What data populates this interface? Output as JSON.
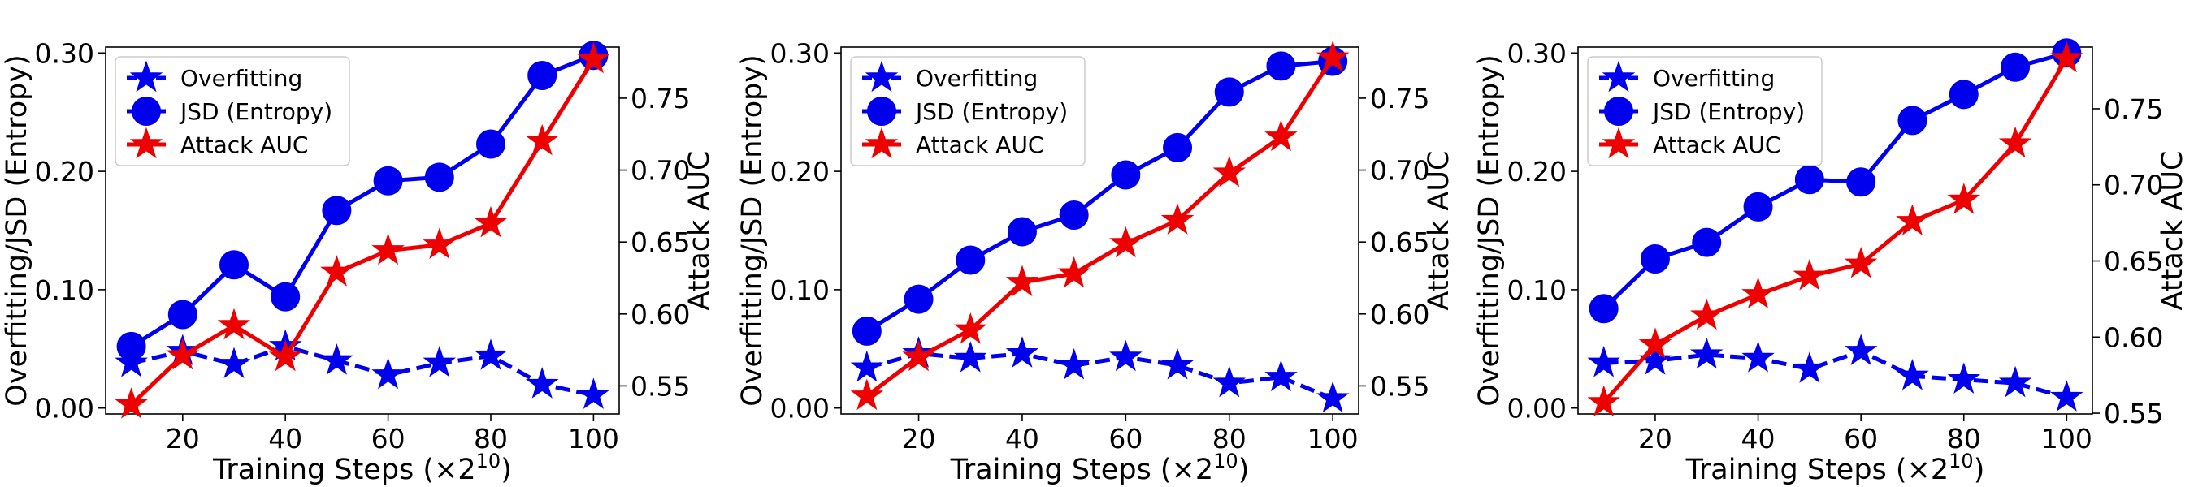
{
  "chart_data": [
    {
      "type": "line",
      "title": "",
      "xlabel": "Training Steps (×2",
      "xlabel_sup": "10",
      "xlabel_end": ")",
      "ylabel": "Overfitting/JSD (Entropy)",
      "y2label": "Attack AUC",
      "xlim": [
        5,
        105
      ],
      "ylim": [
        -0.005,
        0.305
      ],
      "y2lim": [
        0.5305,
        0.7855
      ],
      "xticks": [
        20,
        40,
        60,
        80,
        100
      ],
      "yticks": [
        0.0,
        0.1,
        0.2,
        0.3
      ],
      "ytick_labels": [
        "0.00",
        "0.10",
        "0.20",
        "0.30"
      ],
      "y2ticks": [
        0.55,
        0.6,
        0.65,
        0.7,
        0.75
      ],
      "y2tick_labels": [
        "0.55",
        "0.60",
        "0.65",
        "0.70",
        "0.75"
      ],
      "legend": "top-left",
      "x": [
        10,
        20,
        30,
        40,
        50,
        60,
        70,
        80,
        90,
        100
      ],
      "series": [
        {
          "name": "Overfitting",
          "axis": "left",
          "color": "#0000ee",
          "marker": "star",
          "dashed": true,
          "values": [
            0.038,
            0.048,
            0.037,
            0.052,
            0.04,
            0.028,
            0.038,
            0.044,
            0.02,
            0.011
          ]
        },
        {
          "name": "JSD (Entropy)",
          "axis": "left",
          "color": "#0000ee",
          "marker": "circle",
          "dashed": false,
          "values": [
            0.052,
            0.079,
            0.121,
            0.094,
            0.167,
            0.192,
            0.195,
            0.223,
            0.281,
            0.298
          ]
        },
        {
          "name": "Attack AUC",
          "axis": "right",
          "color": "#ee0000",
          "marker": "star",
          "dashed": false,
          "values": [
            0.537,
            0.571,
            0.592,
            0.57,
            0.629,
            0.644,
            0.648,
            0.663,
            0.72,
            0.777
          ]
        }
      ]
    },
    {
      "type": "line",
      "title": "",
      "xlabel": "Training Steps (×2",
      "xlabel_sup": "10",
      "xlabel_end": ")",
      "ylabel": "Overfitting/JSD (Entropy)",
      "y2label": "Attack AUC",
      "xlim": [
        5,
        105
      ],
      "ylim": [
        -0.005,
        0.305
      ],
      "y2lim": [
        0.5305,
        0.7855
      ],
      "xticks": [
        20,
        40,
        60,
        80,
        100
      ],
      "yticks": [
        0.0,
        0.1,
        0.2,
        0.3
      ],
      "ytick_labels": [
        "0.00",
        "0.10",
        "0.20",
        "0.30"
      ],
      "y2ticks": [
        0.55,
        0.6,
        0.65,
        0.7,
        0.75
      ],
      "y2tick_labels": [
        "0.55",
        "0.60",
        "0.65",
        "0.70",
        "0.75"
      ],
      "legend": "top-left",
      "x": [
        10,
        20,
        30,
        40,
        50,
        60,
        70,
        80,
        90,
        100
      ],
      "series": [
        {
          "name": "Overfitting",
          "axis": "left",
          "color": "#0000ee",
          "marker": "star",
          "dashed": true,
          "values": [
            0.034,
            0.046,
            0.042,
            0.046,
            0.036,
            0.043,
            0.036,
            0.021,
            0.026,
            0.008
          ]
        },
        {
          "name": "JSD (Entropy)",
          "axis": "left",
          "color": "#0000ee",
          "marker": "circle",
          "dashed": false,
          "values": [
            0.065,
            0.092,
            0.125,
            0.149,
            0.163,
            0.197,
            0.22,
            0.267,
            0.289,
            0.293
          ]
        },
        {
          "name": "Attack AUC",
          "axis": "right",
          "color": "#ee0000",
          "marker": "star",
          "dashed": false,
          "values": [
            0.543,
            0.57,
            0.589,
            0.622,
            0.628,
            0.649,
            0.665,
            0.698,
            0.723,
            0.778
          ]
        }
      ]
    },
    {
      "type": "line",
      "title": "",
      "xlabel": "Training Steps (×2",
      "xlabel_sup": "10",
      "xlabel_end": ")",
      "ylabel": "Overfitting/JSD (Entropy)",
      "y2label": "Attack AUC",
      "xlim": [
        5,
        105
      ],
      "ylim": [
        -0.005,
        0.305
      ],
      "y2lim": [
        0.5495,
        0.7905
      ],
      "xticks": [
        20,
        40,
        60,
        80,
        100
      ],
      "yticks": [
        0.0,
        0.1,
        0.2,
        0.3
      ],
      "ytick_labels": [
        "0.00",
        "0.10",
        "0.20",
        "0.30"
      ],
      "y2ticks": [
        0.55,
        0.6,
        0.65,
        0.7,
        0.75
      ],
      "y2tick_labels": [
        "0.55",
        "0.60",
        "0.65",
        "0.70",
        "0.75"
      ],
      "legend": "top-left",
      "x": [
        10,
        20,
        30,
        40,
        50,
        60,
        70,
        80,
        90,
        100
      ],
      "series": [
        {
          "name": "Overfitting",
          "axis": "left",
          "color": "#0000ee",
          "marker": "star",
          "dashed": true,
          "values": [
            0.038,
            0.04,
            0.045,
            0.042,
            0.033,
            0.048,
            0.027,
            0.024,
            0.021,
            0.009
          ]
        },
        {
          "name": "JSD (Entropy)",
          "axis": "left",
          "color": "#0000ee",
          "marker": "circle",
          "dashed": false,
          "values": [
            0.084,
            0.126,
            0.14,
            0.17,
            0.193,
            0.191,
            0.243,
            0.265,
            0.288,
            0.3
          ]
        },
        {
          "name": "Attack AUC",
          "axis": "right",
          "color": "#ee0000",
          "marker": "star",
          "dashed": false,
          "values": [
            0.557,
            0.595,
            0.614,
            0.628,
            0.64,
            0.648,
            0.676,
            0.69,
            0.727,
            0.783
          ]
        }
      ]
    }
  ]
}
